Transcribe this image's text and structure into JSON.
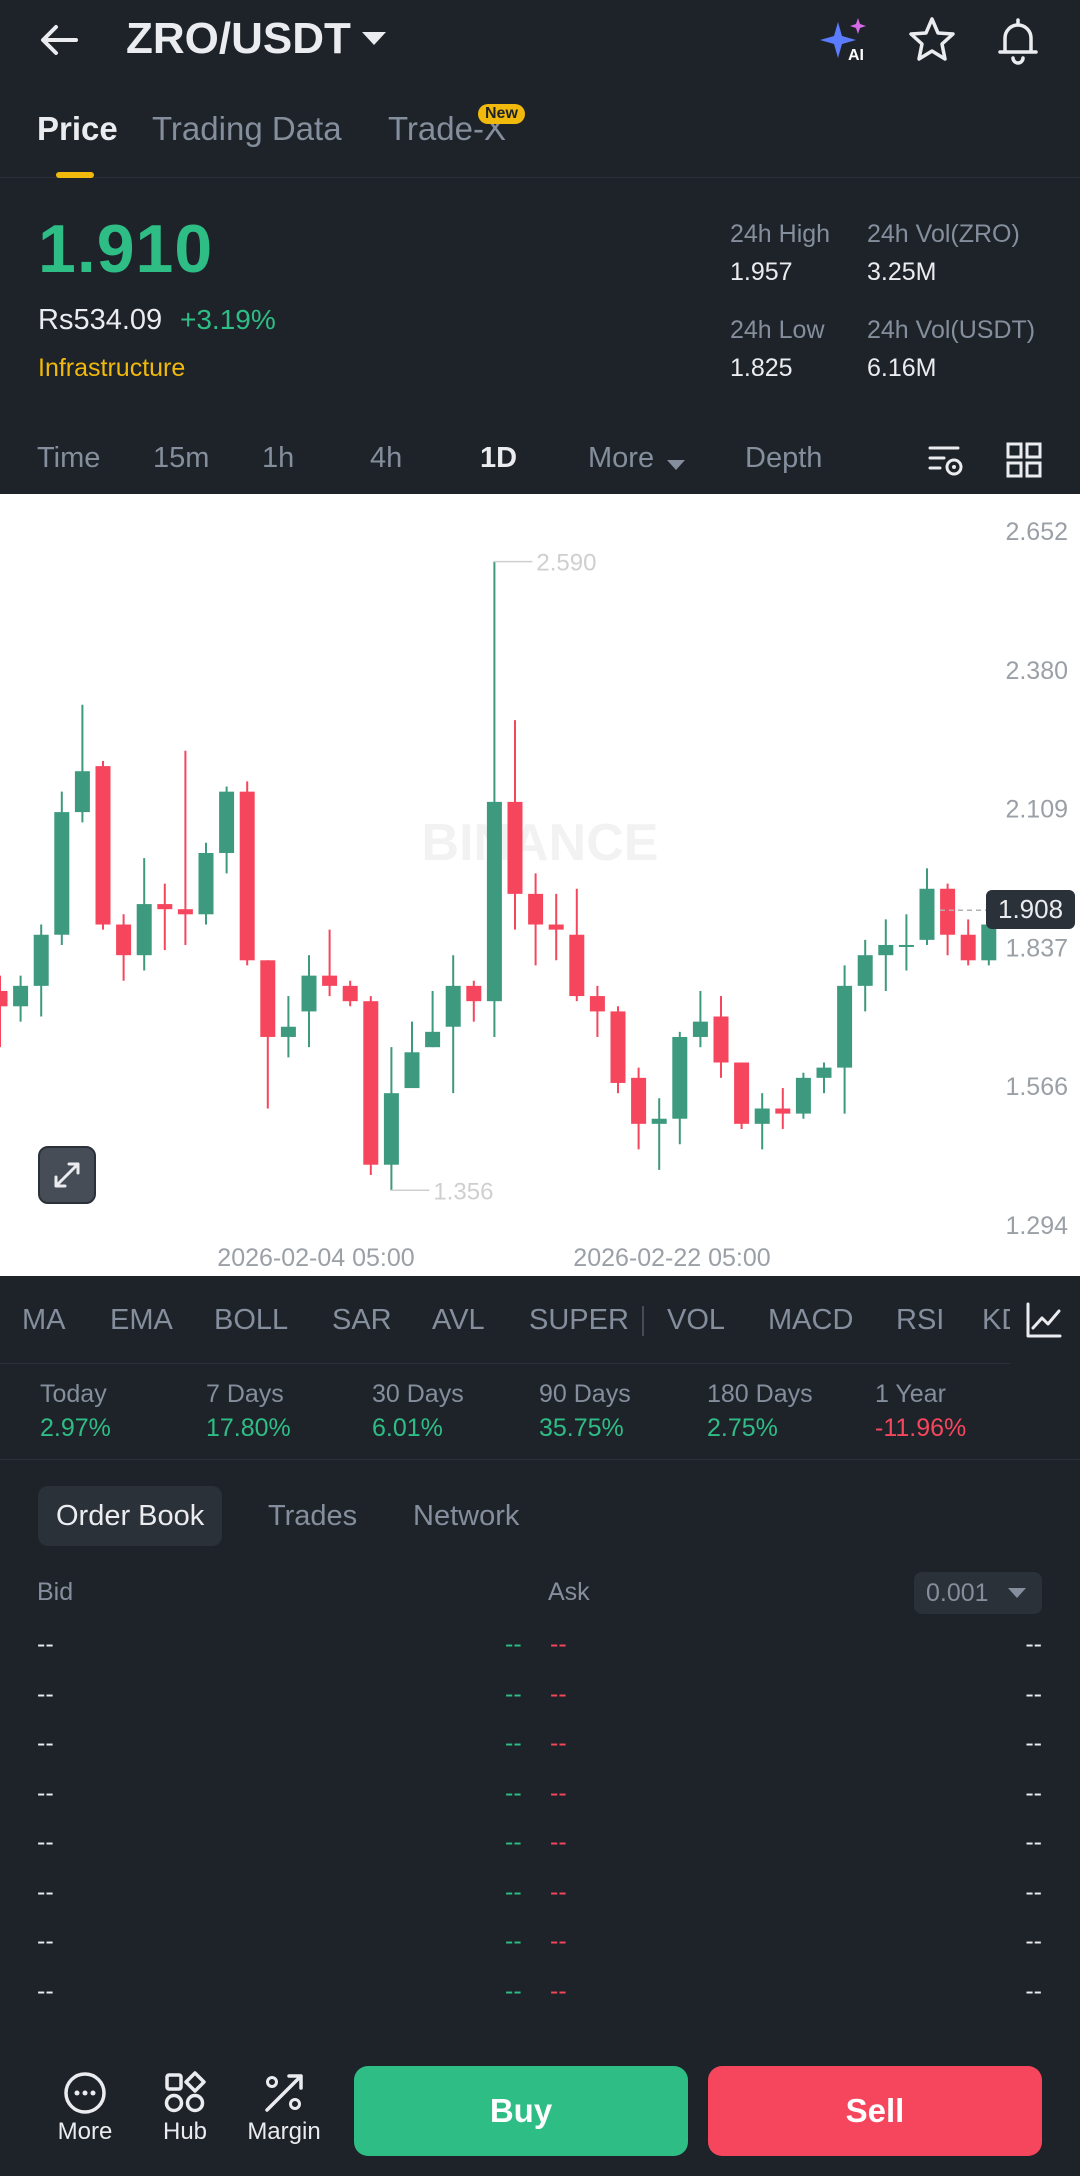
{
  "header": {
    "pair": "ZRO/USDT"
  },
  "tabs": [
    {
      "label": "Price"
    },
    {
      "label": "Trading Data"
    },
    {
      "label": "Trade-X"
    }
  ],
  "new_badge": "New",
  "ticker": {
    "last_price": "1.910",
    "fiat_price": "Rs534.09",
    "change": "+3.19%",
    "category": "Infrastructure",
    "stats": [
      {
        "label": "24h High",
        "value": "1.957"
      },
      {
        "label": "24h Vol(ZRO)",
        "value": "3.25M"
      },
      {
        "label": "24h Low",
        "value": "1.825"
      },
      {
        "label": "24h Vol(USDT)",
        "value": "6.16M"
      }
    ]
  },
  "intervals": [
    {
      "label": "Time"
    },
    {
      "label": "15m"
    },
    {
      "label": "1h"
    },
    {
      "label": "4h"
    },
    {
      "label": "1D"
    },
    {
      "label": "More"
    },
    {
      "label": "Depth"
    }
  ],
  "chart_data": {
    "type": "candlestick",
    "interval": "1D",
    "y_ticks": [
      "2.652",
      "2.380",
      "2.109",
      "1.837",
      "1.566",
      "1.294"
    ],
    "ylim": [
      1.294,
      2.652
    ],
    "x_labels": [
      "2026-02-04 05:00",
      "2026-02-22 05:00"
    ],
    "max_label": "2.590",
    "min_label": "1.356",
    "current_price": "1.908",
    "colors": {
      "up": "#3d9a7e",
      "down": "#f6465d"
    },
    "candles": [
      [
        1.75,
        1.72,
        1.78,
        1.64
      ],
      [
        1.72,
        1.76,
        1.78,
        1.69
      ],
      [
        1.76,
        1.86,
        1.88,
        1.7
      ],
      [
        1.86,
        2.1,
        2.14,
        1.84
      ],
      [
        2.1,
        2.18,
        2.31,
        2.08
      ],
      [
        2.19,
        1.88,
        2.2,
        1.87
      ],
      [
        1.88,
        1.82,
        1.9,
        1.77
      ],
      [
        1.82,
        1.92,
        2.01,
        1.79
      ],
      [
        1.92,
        1.91,
        1.96,
        1.83
      ],
      [
        1.91,
        1.9,
        2.22,
        1.84
      ],
      [
        1.9,
        2.02,
        2.04,
        1.88
      ],
      [
        2.02,
        2.14,
        2.15,
        1.98
      ],
      [
        2.14,
        1.81,
        2.16,
        1.8
      ],
      [
        1.81,
        1.66,
        1.81,
        1.52
      ],
      [
        1.66,
        1.68,
        1.74,
        1.62
      ],
      [
        1.71,
        1.78,
        1.82,
        1.64
      ],
      [
        1.78,
        1.76,
        1.87,
        1.74
      ],
      [
        1.76,
        1.73,
        1.77,
        1.72
      ],
      [
        1.73,
        1.41,
        1.74,
        1.39
      ],
      [
        1.41,
        1.55,
        1.64,
        1.36
      ],
      [
        1.56,
        1.63,
        1.69,
        1.59
      ],
      [
        1.64,
        1.67,
        1.75,
        1.64
      ],
      [
        1.68,
        1.76,
        1.82,
        1.55
      ],
      [
        1.76,
        1.73,
        1.77,
        1.69
      ],
      [
        1.73,
        2.12,
        2.59,
        1.66
      ],
      [
        2.12,
        1.94,
        2.28,
        1.87
      ],
      [
        1.94,
        1.88,
        1.98,
        1.8
      ],
      [
        1.88,
        1.87,
        1.94,
        1.81
      ],
      [
        1.86,
        1.74,
        1.95,
        1.73
      ],
      [
        1.74,
        1.71,
        1.76,
        1.66
      ],
      [
        1.71,
        1.57,
        1.72,
        1.55
      ],
      [
        1.58,
        1.49,
        1.6,
        1.44
      ],
      [
        1.49,
        1.5,
        1.54,
        1.4
      ],
      [
        1.5,
        1.66,
        1.67,
        1.45
      ],
      [
        1.66,
        1.69,
        1.75,
        1.64
      ],
      [
        1.7,
        1.61,
        1.74,
        1.58
      ],
      [
        1.61,
        1.49,
        1.61,
        1.48
      ],
      [
        1.49,
        1.52,
        1.55,
        1.44
      ],
      [
        1.52,
        1.51,
        1.56,
        1.48
      ],
      [
        1.51,
        1.58,
        1.59,
        1.5
      ],
      [
        1.58,
        1.6,
        1.61,
        1.55
      ],
      [
        1.6,
        1.76,
        1.8,
        1.51
      ],
      [
        1.76,
        1.82,
        1.85,
        1.71
      ],
      [
        1.82,
        1.84,
        1.89,
        1.75
      ],
      [
        1.84,
        1.84,
        1.9,
        1.79
      ],
      [
        1.85,
        1.95,
        1.99,
        1.84
      ],
      [
        1.95,
        1.86,
        1.96,
        1.82
      ],
      [
        1.86,
        1.81,
        1.89,
        1.8
      ],
      [
        1.81,
        1.88,
        1.93,
        1.8
      ]
    ]
  },
  "indicators": [
    "MA",
    "EMA",
    "BOLL",
    "SAR",
    "AVL",
    "SUPER",
    "VOL",
    "MACD",
    "RSI",
    "KD"
  ],
  "performance": [
    {
      "label": "Today",
      "value": "2.97%",
      "trend": "up"
    },
    {
      "label": "7 Days",
      "value": "17.80%",
      "trend": "up"
    },
    {
      "label": "30 Days",
      "value": "6.01%",
      "trend": "up"
    },
    {
      "label": "90 Days",
      "value": "35.75%",
      "trend": "up"
    },
    {
      "label": "180 Days",
      "value": "2.75%",
      "trend": "up"
    },
    {
      "label": "1 Year",
      "value": "-11.96%",
      "trend": "down"
    }
  ],
  "order_book": {
    "tabs": [
      {
        "label": "Order Book"
      },
      {
        "label": "Trades"
      },
      {
        "label": "Network"
      }
    ],
    "bid_label": "Bid",
    "ask_label": "Ask",
    "precision": "0.001",
    "rows": [
      {
        "bid_qty": "--",
        "bid_price": "--",
        "ask_price": "--",
        "ask_qty": "--"
      },
      {
        "bid_qty": "--",
        "bid_price": "--",
        "ask_price": "--",
        "ask_qty": "--"
      },
      {
        "bid_qty": "--",
        "bid_price": "--",
        "ask_price": "--",
        "ask_qty": "--"
      },
      {
        "bid_qty": "--",
        "bid_price": "--",
        "ask_price": "--",
        "ask_qty": "--"
      },
      {
        "bid_qty": "--",
        "bid_price": "--",
        "ask_price": "--",
        "ask_qty": "--"
      },
      {
        "bid_qty": "--",
        "bid_price": "--",
        "ask_price": "--",
        "ask_qty": "--"
      },
      {
        "bid_qty": "--",
        "bid_price": "--",
        "ask_price": "--",
        "ask_qty": "--"
      },
      {
        "bid_qty": "--",
        "bid_price": "--",
        "ask_price": "--",
        "ask_qty": "--"
      }
    ]
  },
  "bottom": {
    "nav": [
      {
        "label": "More",
        "icon": "more-icon"
      },
      {
        "label": "Hub",
        "icon": "hub-icon"
      },
      {
        "label": "Margin",
        "icon": "margin-icon"
      }
    ],
    "buy_label": "Buy",
    "sell_label": "Sell"
  }
}
